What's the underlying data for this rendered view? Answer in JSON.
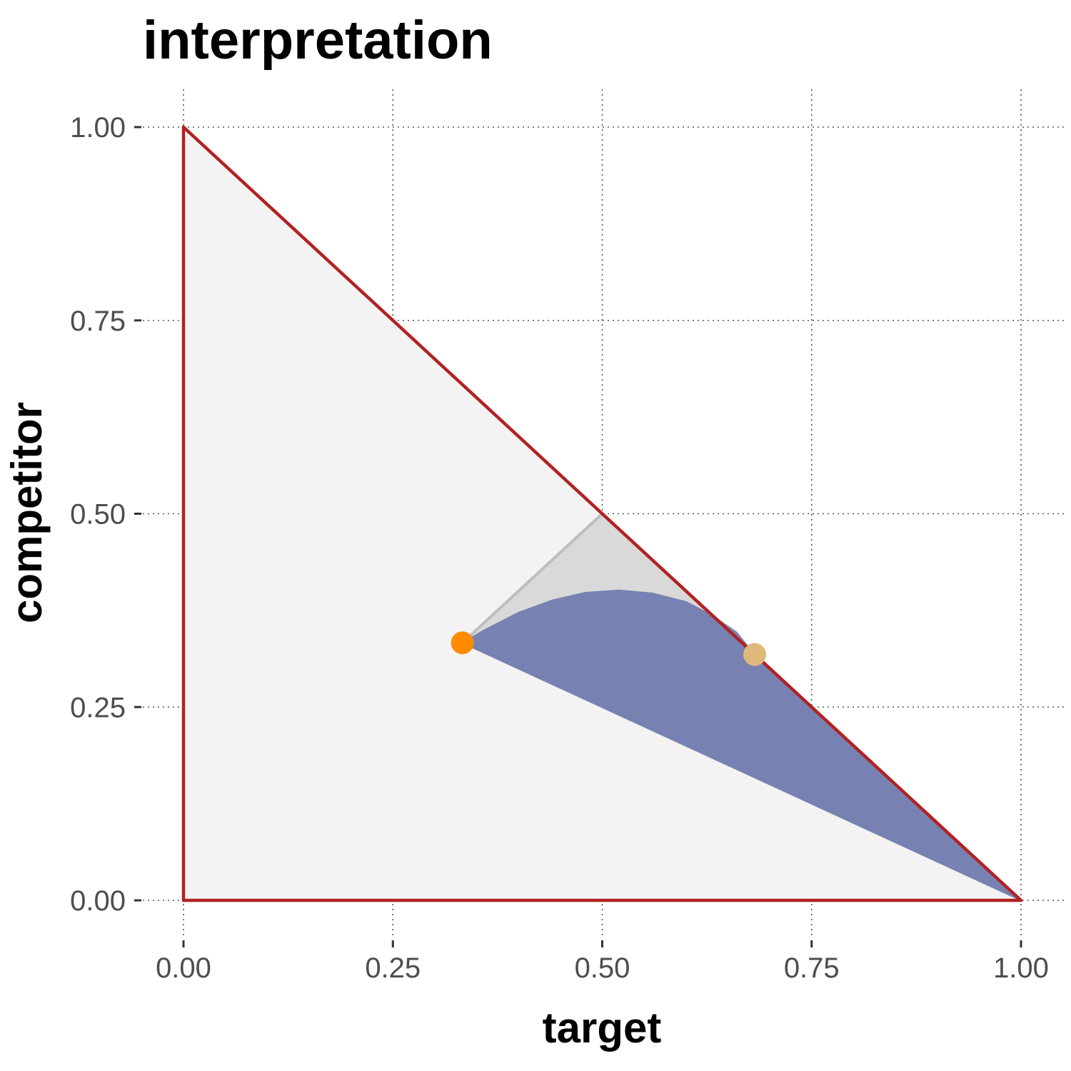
{
  "chart_data": {
    "type": "scatter",
    "title": "interpretation",
    "xlabel": "target",
    "ylabel": "competitor",
    "xlim": [
      0,
      1
    ],
    "ylim": [
      0,
      1
    ],
    "x_ticks": [
      0,
      0.25,
      0.5,
      0.75,
      1
    ],
    "y_ticks": [
      0,
      0.25,
      0.5,
      0.75,
      1
    ],
    "x_tick_labels": [
      "0.00",
      "0.25",
      "0.50",
      "0.75",
      "1.00"
    ],
    "y_tick_labels": [
      "0.00",
      "0.25",
      "0.50",
      "0.75",
      "1.00"
    ],
    "grid": true,
    "simplex_outline": {
      "color": "#b22222",
      "fill": "#f3f3f3",
      "points": [
        [
          0,
          0
        ],
        [
          1,
          0
        ],
        [
          0,
          1
        ]
      ]
    },
    "grey_region": {
      "color": "#bebebe",
      "fill": "#d9d9d9",
      "points": [
        [
          0.333,
          0.333
        ],
        [
          0.5,
          0.5
        ],
        [
          0.667,
          0.333
        ]
      ]
    },
    "blue_region": {
      "fill": "#7782b2",
      "upper_curve": [
        [
          0.333,
          0.333
        ],
        [
          0.36,
          0.35
        ],
        [
          0.4,
          0.372
        ],
        [
          0.44,
          0.388
        ],
        [
          0.48,
          0.398
        ],
        [
          0.52,
          0.401
        ],
        [
          0.56,
          0.397
        ],
        [
          0.6,
          0.386
        ],
        [
          0.63,
          0.369
        ],
        [
          0.66,
          0.347
        ],
        [
          0.68,
          0.32
        ],
        [
          0.72,
          0.28
        ],
        [
          0.8,
          0.2
        ],
        [
          0.9,
          0.1
        ],
        [
          1.0,
          0.0
        ]
      ],
      "lower_line": [
        [
          1.0,
          0.0
        ],
        [
          0.333,
          0.333
        ]
      ]
    },
    "points": [
      {
        "x": 0.333,
        "y": 0.333,
        "color": "#ff8c00"
      },
      {
        "x": 0.682,
        "y": 0.318,
        "color": "#e0b97a"
      }
    ]
  }
}
